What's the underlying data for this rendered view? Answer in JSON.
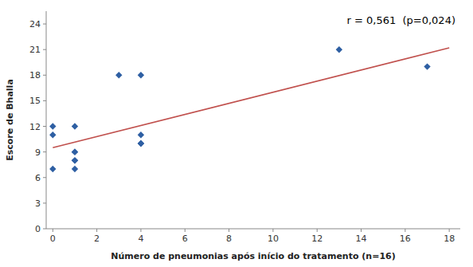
{
  "chart_data": {
    "type": "scatter",
    "annotation": "r = 0,561  (p=0,024)",
    "x_label": "Número de pneumonias após início do tratamento (n=16)",
    "y_label": "Escore de Bhalla",
    "xlim": [
      -0.3,
      18.5
    ],
    "ylim": [
      0,
      25.5
    ],
    "xticks": [
      0,
      2,
      4,
      6,
      8,
      10,
      12,
      14,
      16,
      18
    ],
    "yticks": [
      0,
      3,
      6,
      9,
      12,
      15,
      18,
      21,
      24
    ],
    "grid": false,
    "series": [
      {
        "type": "scatter",
        "marker": "diamond",
        "color": "#2E5FA3",
        "x": [
          0,
          0,
          0,
          1,
          1,
          1,
          1,
          1,
          1,
          3,
          4,
          4,
          4,
          4,
          13,
          17
        ],
        "values": [
          7,
          11,
          12,
          8,
          8,
          9,
          9,
          12,
          7,
          18,
          10,
          11,
          10,
          18,
          21,
          19
        ]
      },
      {
        "type": "line",
        "color": "#C0504D",
        "x": [
          0,
          18
        ],
        "values": [
          9.5,
          21.2
        ]
      }
    ]
  }
}
